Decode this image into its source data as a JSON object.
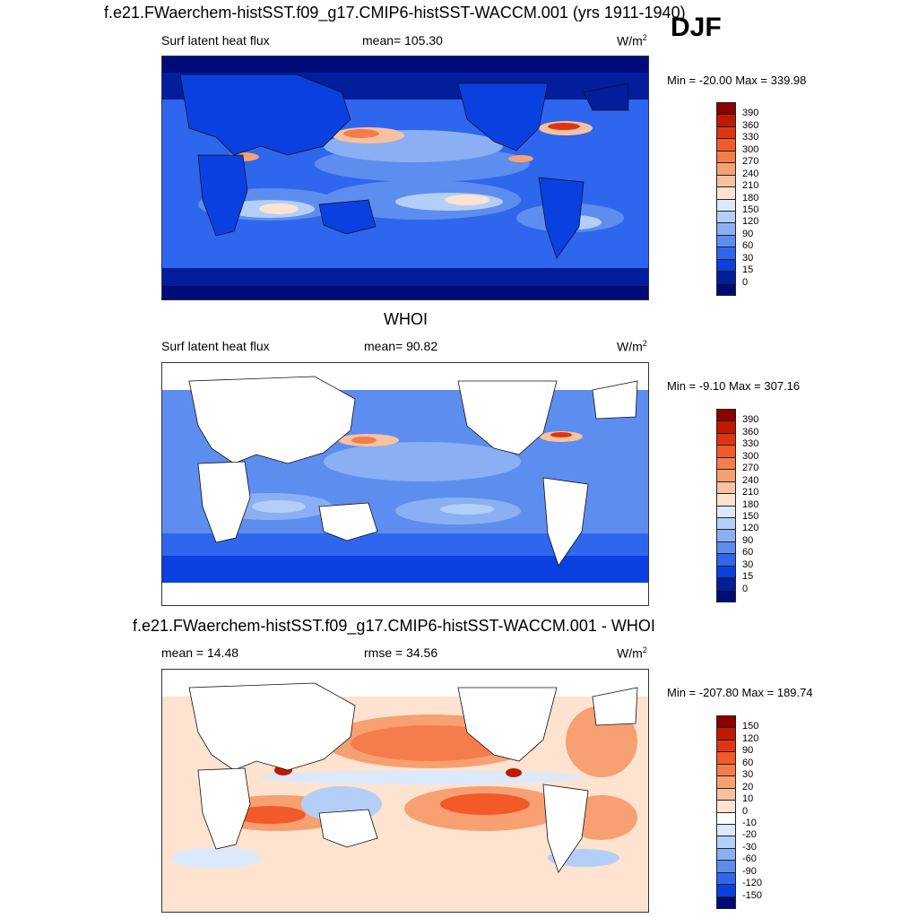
{
  "figure": {
    "title": "f.e21.FWaerchem-histSST.f09_g17.CMIP6-histSST-WACCM.001 (yrs 1911-1940)",
    "season": "DJF"
  },
  "panels": [
    {
      "id": "model",
      "heading": "",
      "left_label": "Surf latent heat flux",
      "center_label": "mean= 105.30",
      "units": "W/m",
      "units_sup": "2",
      "minmax": "Min = -20.00 Max = 339.98",
      "colorbar": {
        "labels": [
          "390",
          "360",
          "330",
          "300",
          "270",
          "240",
          "210",
          "180",
          "150",
          "120",
          "90",
          "60",
          "30",
          "15",
          "0"
        ],
        "colors": [
          "#8b0000",
          "#bf1a00",
          "#e03512",
          "#f25a2a",
          "#f57d4b",
          "#f7a072",
          "#f8c1a0",
          "#fde3d0",
          "#dbe9fb",
          "#b3cff7",
          "#8ab0f3",
          "#5d8def",
          "#2f66ee",
          "#0a40df",
          "#021e9c",
          "#000b7a"
        ]
      }
    },
    {
      "id": "obs",
      "heading": "WHOI",
      "left_label": "Surf latent heat flux",
      "center_label": "mean=  90.82",
      "units": "W/m",
      "units_sup": "2",
      "minmax": "Min =  -9.10 Max = 307.16",
      "colorbar": {
        "labels": [
          "390",
          "360",
          "330",
          "300",
          "270",
          "240",
          "210",
          "180",
          "150",
          "120",
          "90",
          "60",
          "30",
          "15",
          "0"
        ],
        "colors": [
          "#8b0000",
          "#bf1a00",
          "#e03512",
          "#f25a2a",
          "#f57d4b",
          "#f7a072",
          "#f8c1a0",
          "#fde3d0",
          "#dbe9fb",
          "#b3cff7",
          "#8ab0f3",
          "#5d8def",
          "#2f66ee",
          "#0a40df",
          "#021e9c",
          "#000b7a"
        ]
      }
    },
    {
      "id": "diff",
      "heading": "f.e21.FWaerchem-histSST.f09_g17.CMIP6-histSST-WACCM.001 - WHOI",
      "left_label": "mean =  14.48",
      "center_label": "rmse =  34.56",
      "units": "W/m",
      "units_sup": "2",
      "minmax": "Min = -207.80 Max = 189.74",
      "colorbar": {
        "labels": [
          "150",
          "120",
          "90",
          "60",
          "30",
          "20",
          "10",
          "0",
          "-10",
          "-20",
          "-30",
          "-60",
          "-90",
          "-120",
          "-150"
        ],
        "colors": [
          "#8b0000",
          "#bf1a00",
          "#e03512",
          "#f25a2a",
          "#f57d4b",
          "#f7a072",
          "#f8c1a0",
          "#fde3d0",
          "#ffffff",
          "#dbe9fb",
          "#b3cff7",
          "#8ab0f3",
          "#5d8def",
          "#2f66ee",
          "#0a40df",
          "#000b7a"
        ]
      }
    }
  ]
}
